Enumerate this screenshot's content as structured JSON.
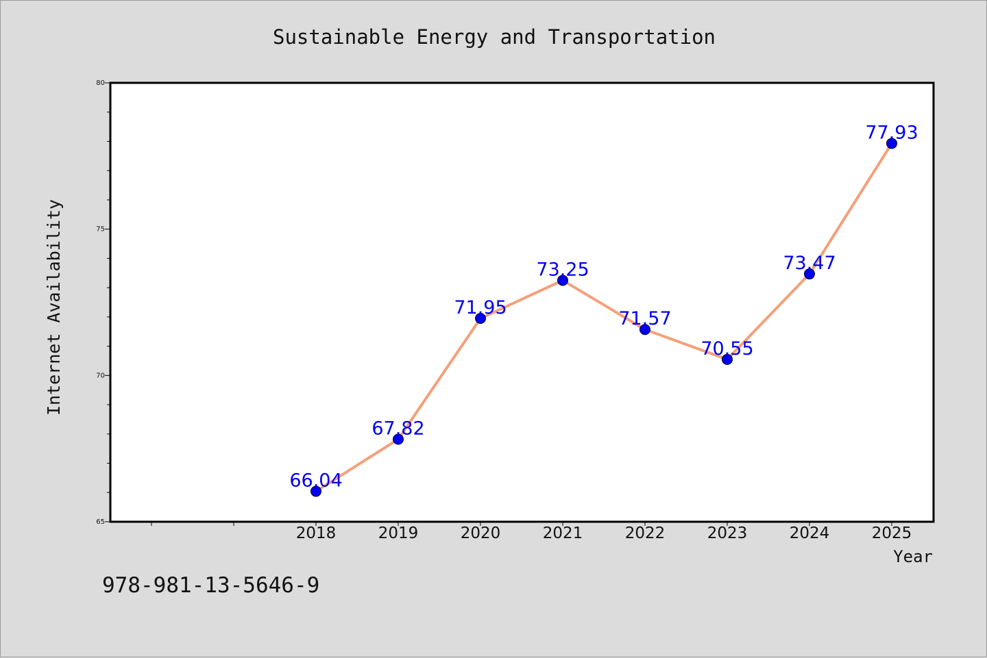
{
  "chart_data": {
    "type": "line",
    "title": "Sustainable Energy and Transportation",
    "xlabel": "Year",
    "ylabel": "Internet Availability",
    "categories": [
      "2018",
      "2019",
      "2020",
      "2021",
      "2022",
      "2023",
      "2024",
      "2025"
    ],
    "series": [
      {
        "values": [
          66.04,
          67.82,
          71.95,
          73.25,
          71.57,
          70.55,
          73.47,
          77.93
        ],
        "labels": [
          "66.04",
          "67.82",
          "71.95",
          "73.25",
          "71.57",
          "70.55",
          "73.47",
          "77.93"
        ],
        "line_color": "#f4a07a",
        "marker_color": "#0000ee"
      }
    ],
    "ylim": [
      65,
      80
    ],
    "yticks": [
      "65",
      "70",
      "75",
      "80"
    ],
    "grid": false,
    "legend": "none"
  },
  "footer": {
    "isbn": "978-981-13-5646-9"
  },
  "colors": {
    "background": "#dcdcdc",
    "plot_area": "#ffffff",
    "data_label": "#0000ee"
  }
}
